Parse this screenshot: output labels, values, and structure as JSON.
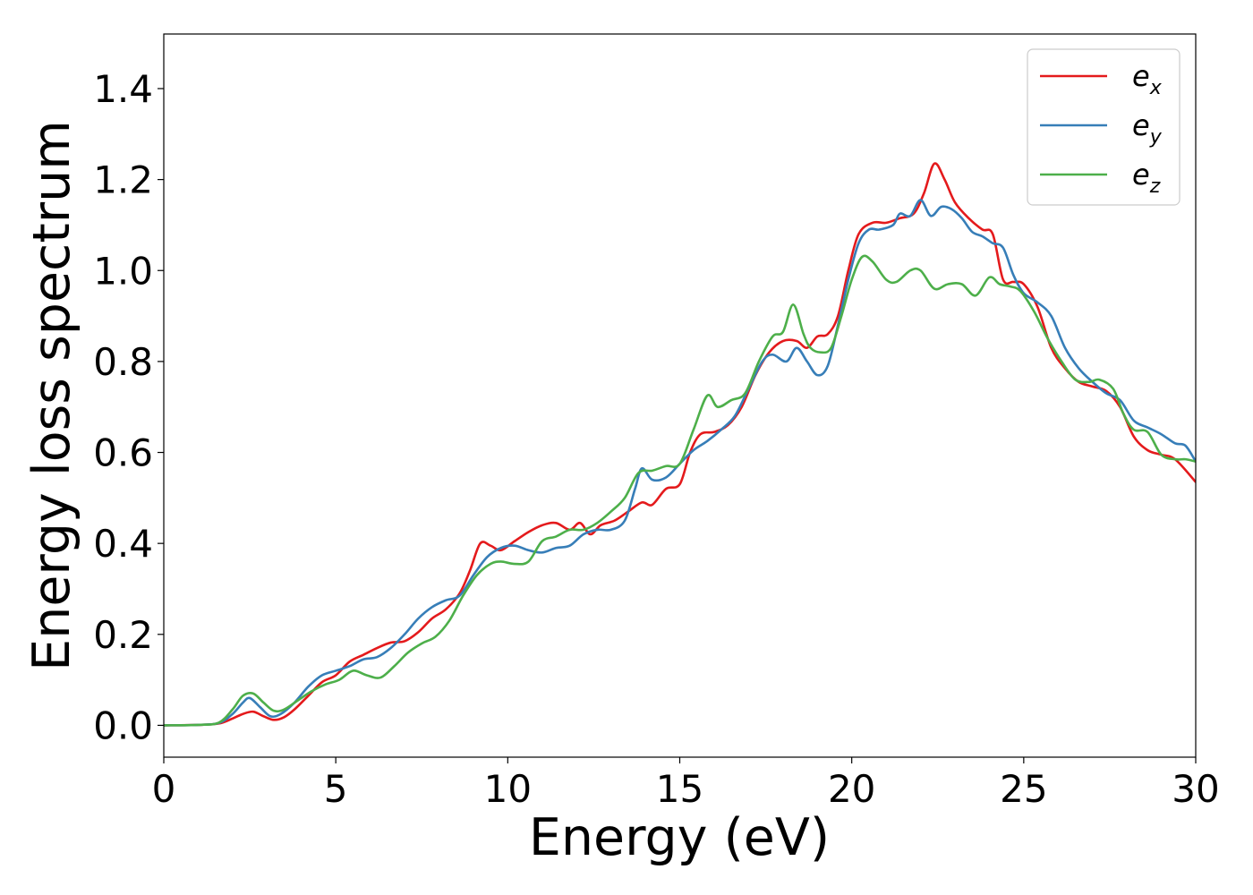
{
  "chart_data": {
    "type": "line",
    "title": "",
    "xlabel": "Energy (eV)",
    "ylabel": "Energy loss spectrum",
    "xlim": [
      0,
      30
    ],
    "ylim": [
      -0.07,
      1.52
    ],
    "xticks": [
      0,
      5,
      10,
      15,
      20,
      25,
      30
    ],
    "xtick_labels": [
      "0",
      "5",
      "10",
      "15",
      "20",
      "25",
      "30"
    ],
    "yticks": [
      0.0,
      0.2,
      0.4,
      0.6,
      0.8,
      1.0,
      1.2,
      1.4
    ],
    "ytick_labels": [
      "0.0",
      "0.2",
      "0.4",
      "0.6",
      "0.8",
      "1.0",
      "1.2",
      "1.4"
    ],
    "grid": false,
    "legend_position": "top-right",
    "series": [
      {
        "name": "e_x",
        "legend_base": "e",
        "legend_sub": "x",
        "color": "#e41a1c",
        "points": [
          [
            0,
            0
          ],
          [
            1,
            0.001
          ],
          [
            1.6,
            0.004
          ],
          [
            2,
            0.015
          ],
          [
            2.3,
            0.025
          ],
          [
            2.6,
            0.03
          ],
          [
            2.9,
            0.02
          ],
          [
            3.2,
            0.012
          ],
          [
            3.5,
            0.018
          ],
          [
            3.8,
            0.035
          ],
          [
            4.2,
            0.065
          ],
          [
            4.6,
            0.095
          ],
          [
            5,
            0.11
          ],
          [
            5.4,
            0.14
          ],
          [
            5.8,
            0.155
          ],
          [
            6.2,
            0.17
          ],
          [
            6.6,
            0.182
          ],
          [
            7,
            0.185
          ],
          [
            7.4,
            0.205
          ],
          [
            7.8,
            0.235
          ],
          [
            8.2,
            0.255
          ],
          [
            8.6,
            0.29
          ],
          [
            8.9,
            0.34
          ],
          [
            9.2,
            0.4
          ],
          [
            9.5,
            0.395
          ],
          [
            9.8,
            0.385
          ],
          [
            10.2,
            0.405
          ],
          [
            10.6,
            0.425
          ],
          [
            11,
            0.44
          ],
          [
            11.4,
            0.445
          ],
          [
            11.8,
            0.43
          ],
          [
            12.1,
            0.445
          ],
          [
            12.4,
            0.42
          ],
          [
            12.7,
            0.44
          ],
          [
            13.1,
            0.45
          ],
          [
            13.5,
            0.47
          ],
          [
            13.9,
            0.49
          ],
          [
            14.2,
            0.485
          ],
          [
            14.6,
            0.52
          ],
          [
            15,
            0.53
          ],
          [
            15.3,
            0.6
          ],
          [
            15.6,
            0.64
          ],
          [
            16,
            0.645
          ],
          [
            16.4,
            0.66
          ],
          [
            16.8,
            0.7
          ],
          [
            17.2,
            0.77
          ],
          [
            17.6,
            0.82
          ],
          [
            18,
            0.845
          ],
          [
            18.4,
            0.845
          ],
          [
            18.7,
            0.83
          ],
          [
            19,
            0.855
          ],
          [
            19.3,
            0.86
          ],
          [
            19.6,
            0.9
          ],
          [
            19.9,
            1.0
          ],
          [
            20.2,
            1.08
          ],
          [
            20.6,
            1.105
          ],
          [
            21,
            1.105
          ],
          [
            21.4,
            1.115
          ],
          [
            21.8,
            1.125
          ],
          [
            22.1,
            1.17
          ],
          [
            22.4,
            1.235
          ],
          [
            22.7,
            1.2
          ],
          [
            23,
            1.15
          ],
          [
            23.4,
            1.115
          ],
          [
            23.8,
            1.09
          ],
          [
            24.1,
            1.08
          ],
          [
            24.4,
            0.98
          ],
          [
            24.7,
            0.975
          ],
          [
            25,
            0.97
          ],
          [
            25.4,
            0.92
          ],
          [
            25.8,
            0.83
          ],
          [
            26.2,
            0.785
          ],
          [
            26.6,
            0.755
          ],
          [
            27,
            0.745
          ],
          [
            27.4,
            0.735
          ],
          [
            27.8,
            0.7
          ],
          [
            28.2,
            0.635
          ],
          [
            28.6,
            0.605
          ],
          [
            29,
            0.595
          ],
          [
            29.4,
            0.585
          ],
          [
            30,
            0.535
          ]
        ]
      },
      {
        "name": "e_y",
        "legend_base": "e",
        "legend_sub": "y",
        "color": "#377eb8",
        "points": [
          [
            0,
            0
          ],
          [
            1,
            0.001
          ],
          [
            1.6,
            0.005
          ],
          [
            2,
            0.025
          ],
          [
            2.3,
            0.05
          ],
          [
            2.5,
            0.06
          ],
          [
            2.8,
            0.04
          ],
          [
            3.1,
            0.02
          ],
          [
            3.4,
            0.025
          ],
          [
            3.8,
            0.05
          ],
          [
            4.2,
            0.085
          ],
          [
            4.6,
            0.11
          ],
          [
            5,
            0.12
          ],
          [
            5.4,
            0.13
          ],
          [
            5.8,
            0.145
          ],
          [
            6.2,
            0.15
          ],
          [
            6.6,
            0.17
          ],
          [
            7,
            0.2
          ],
          [
            7.4,
            0.235
          ],
          [
            7.8,
            0.26
          ],
          [
            8.2,
            0.275
          ],
          [
            8.6,
            0.285
          ],
          [
            9,
            0.33
          ],
          [
            9.4,
            0.37
          ],
          [
            9.8,
            0.39
          ],
          [
            10.2,
            0.395
          ],
          [
            10.6,
            0.385
          ],
          [
            11,
            0.38
          ],
          [
            11.4,
            0.39
          ],
          [
            11.8,
            0.395
          ],
          [
            12.2,
            0.42
          ],
          [
            12.6,
            0.43
          ],
          [
            13,
            0.43
          ],
          [
            13.4,
            0.45
          ],
          [
            13.7,
            0.52
          ],
          [
            13.9,
            0.565
          ],
          [
            14.2,
            0.54
          ],
          [
            14.6,
            0.545
          ],
          [
            15,
            0.575
          ],
          [
            15.4,
            0.605
          ],
          [
            15.8,
            0.625
          ],
          [
            16.2,
            0.65
          ],
          [
            16.6,
            0.68
          ],
          [
            17,
            0.74
          ],
          [
            17.4,
            0.8
          ],
          [
            17.7,
            0.815
          ],
          [
            18.1,
            0.8
          ],
          [
            18.4,
            0.83
          ],
          [
            18.7,
            0.8
          ],
          [
            19,
            0.77
          ],
          [
            19.3,
            0.79
          ],
          [
            19.6,
            0.88
          ],
          [
            19.9,
            0.98
          ],
          [
            20.2,
            1.06
          ],
          [
            20.5,
            1.09
          ],
          [
            20.8,
            1.09
          ],
          [
            21.2,
            1.1
          ],
          [
            21.4,
            1.125
          ],
          [
            21.7,
            1.12
          ],
          [
            22,
            1.155
          ],
          [
            22.3,
            1.12
          ],
          [
            22.6,
            1.14
          ],
          [
            22.9,
            1.135
          ],
          [
            23.2,
            1.115
          ],
          [
            23.5,
            1.085
          ],
          [
            23.8,
            1.075
          ],
          [
            24.1,
            1.06
          ],
          [
            24.4,
            1.05
          ],
          [
            24.7,
            0.99
          ],
          [
            25,
            0.95
          ],
          [
            25.4,
            0.93
          ],
          [
            25.8,
            0.9
          ],
          [
            26.2,
            0.83
          ],
          [
            26.6,
            0.785
          ],
          [
            27,
            0.755
          ],
          [
            27.4,
            0.73
          ],
          [
            27.8,
            0.715
          ],
          [
            28.2,
            0.67
          ],
          [
            28.6,
            0.655
          ],
          [
            29,
            0.64
          ],
          [
            29.4,
            0.62
          ],
          [
            29.7,
            0.615
          ],
          [
            30,
            0.58
          ]
        ]
      },
      {
        "name": "e_z",
        "legend_base": "e",
        "legend_sub": "z",
        "color": "#4daf4a",
        "points": [
          [
            0,
            0
          ],
          [
            1,
            0.001
          ],
          [
            1.6,
            0.006
          ],
          [
            2,
            0.035
          ],
          [
            2.3,
            0.065
          ],
          [
            2.6,
            0.07
          ],
          [
            2.9,
            0.05
          ],
          [
            3.2,
            0.032
          ],
          [
            3.5,
            0.035
          ],
          [
            3.9,
            0.055
          ],
          [
            4.3,
            0.075
          ],
          [
            4.7,
            0.09
          ],
          [
            5.1,
            0.1
          ],
          [
            5.5,
            0.12
          ],
          [
            5.9,
            0.11
          ],
          [
            6.3,
            0.105
          ],
          [
            6.7,
            0.13
          ],
          [
            7.1,
            0.16
          ],
          [
            7.5,
            0.18
          ],
          [
            7.9,
            0.195
          ],
          [
            8.3,
            0.23
          ],
          [
            8.7,
            0.285
          ],
          [
            9.1,
            0.33
          ],
          [
            9.5,
            0.355
          ],
          [
            9.8,
            0.36
          ],
          [
            10.2,
            0.355
          ],
          [
            10.6,
            0.36
          ],
          [
            11,
            0.405
          ],
          [
            11.4,
            0.415
          ],
          [
            11.8,
            0.43
          ],
          [
            12.2,
            0.43
          ],
          [
            12.6,
            0.445
          ],
          [
            13,
            0.47
          ],
          [
            13.4,
            0.5
          ],
          [
            13.8,
            0.555
          ],
          [
            14.2,
            0.56
          ],
          [
            14.6,
            0.57
          ],
          [
            15,
            0.575
          ],
          [
            15.4,
            0.65
          ],
          [
            15.8,
            0.725
          ],
          [
            16.1,
            0.7
          ],
          [
            16.5,
            0.715
          ],
          [
            16.9,
            0.73
          ],
          [
            17.3,
            0.8
          ],
          [
            17.7,
            0.855
          ],
          [
            18,
            0.865
          ],
          [
            18.3,
            0.925
          ],
          [
            18.6,
            0.86
          ],
          [
            18.8,
            0.83
          ],
          [
            19.1,
            0.82
          ],
          [
            19.4,
            0.83
          ],
          [
            19.7,
            0.9
          ],
          [
            20,
            0.98
          ],
          [
            20.3,
            1.03
          ],
          [
            20.6,
            1.02
          ],
          [
            21,
            0.98
          ],
          [
            21.3,
            0.975
          ],
          [
            21.7,
            1.0
          ],
          [
            22,
            1.0
          ],
          [
            22.4,
            0.96
          ],
          [
            22.8,
            0.97
          ],
          [
            23.2,
            0.97
          ],
          [
            23.6,
            0.945
          ],
          [
            24,
            0.985
          ],
          [
            24.3,
            0.97
          ],
          [
            24.6,
            0.965
          ],
          [
            24.9,
            0.955
          ],
          [
            25.3,
            0.91
          ],
          [
            25.7,
            0.85
          ],
          [
            26.1,
            0.8
          ],
          [
            26.5,
            0.76
          ],
          [
            26.9,
            0.755
          ],
          [
            27.2,
            0.76
          ],
          [
            27.6,
            0.74
          ],
          [
            27.9,
            0.685
          ],
          [
            28.2,
            0.65
          ],
          [
            28.6,
            0.645
          ],
          [
            29,
            0.595
          ],
          [
            29.4,
            0.585
          ],
          [
            29.7,
            0.585
          ],
          [
            30,
            0.58
          ]
        ]
      }
    ]
  }
}
